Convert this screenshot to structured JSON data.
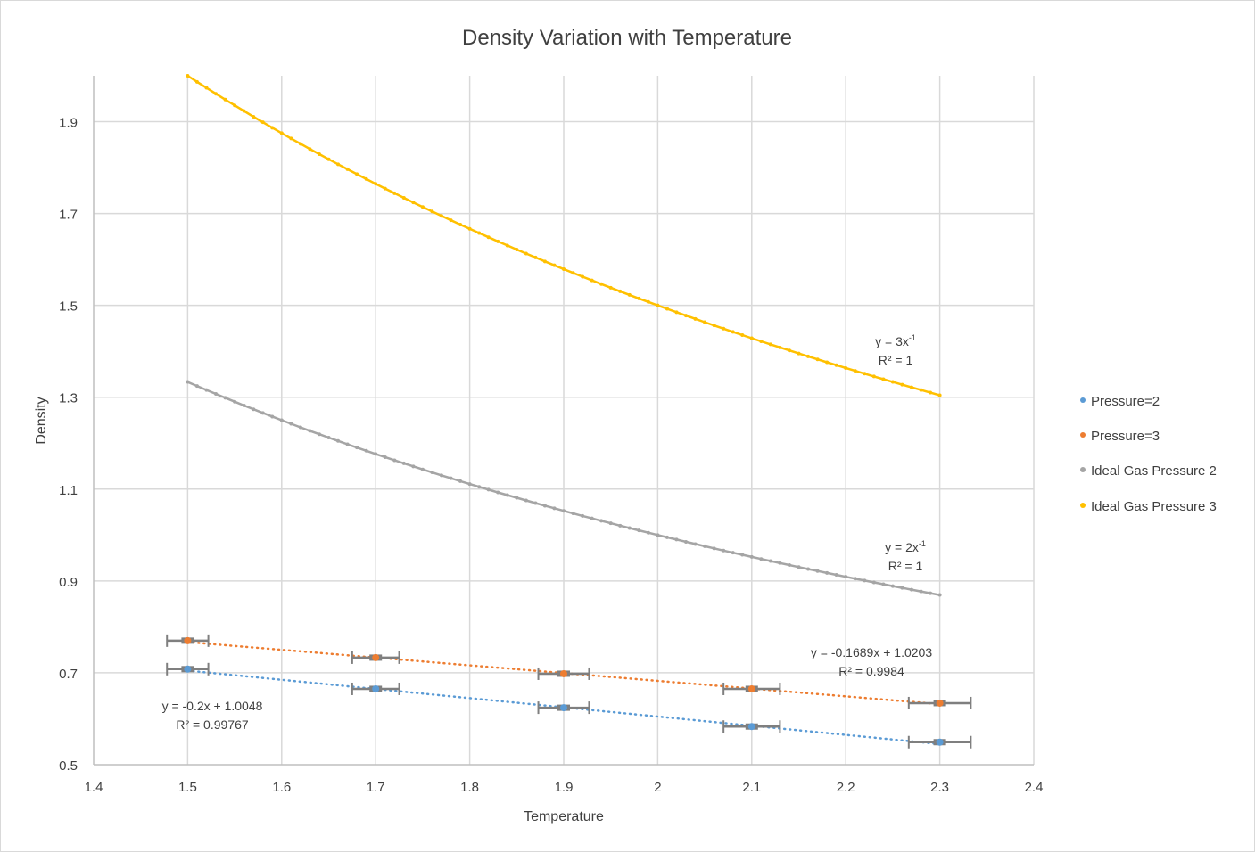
{
  "chart_data": {
    "type": "scatter",
    "title": "Density Variation with Temperature",
    "xlabel": "Temperature",
    "ylabel": "Density",
    "xlim": [
      1.4,
      2.4
    ],
    "ylim": [
      0.5,
      2.0
    ],
    "xticks": [
      "1.4",
      "1.5",
      "1.6",
      "1.7",
      "1.8",
      "1.9",
      "2",
      "2.1",
      "2.2",
      "2.3",
      "2.4"
    ],
    "xtick_values": [
      1.4,
      1.5,
      1.6,
      1.7,
      1.8,
      1.9,
      2.0,
      2.1,
      2.2,
      2.3,
      2.4
    ],
    "yticks": [
      "0.5",
      "0.7",
      "0.9",
      "1.1",
      "1.3",
      "1.5",
      "1.7",
      "1.9"
    ],
    "ytick_values": [
      0.5,
      0.7,
      0.9,
      1.1,
      1.3,
      1.5,
      1.7,
      1.9
    ],
    "grid": true,
    "legend_position": "right",
    "series": [
      {
        "name": "Pressure=2",
        "color": "#5b9bd5",
        "kind": "points",
        "x": [
          1.5,
          1.7,
          1.9,
          2.1,
          2.3
        ],
        "y": [
          0.708,
          0.665,
          0.624,
          0.583,
          0.549
        ],
        "x_error": [
          0.022,
          0.025,
          0.027,
          0.03,
          0.033
        ],
        "trendline": {
          "type": "linear",
          "slope": -0.2,
          "intercept": 1.0048,
          "equation": "y = -0.2x + 1.0048",
          "r2": "R² = 0.99767"
        }
      },
      {
        "name": "Pressure=3",
        "color": "#ed7d31",
        "kind": "points",
        "x": [
          1.5,
          1.7,
          1.9,
          2.1,
          2.3
        ],
        "y": [
          0.77,
          0.733,
          0.698,
          0.665,
          0.634
        ],
        "x_error": [
          0.022,
          0.025,
          0.027,
          0.03,
          0.033
        ],
        "trendline": {
          "type": "linear",
          "slope": -0.1689,
          "intercept": 1.0203,
          "equation": "y = -0.1689x + 1.0203",
          "r2": "R² = 0.9984"
        }
      },
      {
        "name": "Ideal Gas Pressure 2",
        "color": "#a5a5a5",
        "kind": "curve",
        "function": "2/x",
        "x_range": [
          1.5,
          2.3
        ],
        "step": 0.01,
        "trendline": {
          "type": "power",
          "equation_base": "y = 2x",
          "equation_exp": "-1",
          "r2": "R² = 1"
        }
      },
      {
        "name": "Ideal Gas Pressure 3",
        "color": "#ffc000",
        "kind": "curve",
        "function": "3/x",
        "x_range": [
          1.5,
          2.3
        ],
        "step": 0.01,
        "trendline": {
          "type": "power",
          "equation_base": "y = 3x",
          "equation_exp": "-1",
          "r2": "R² = 1"
        }
      }
    ]
  }
}
